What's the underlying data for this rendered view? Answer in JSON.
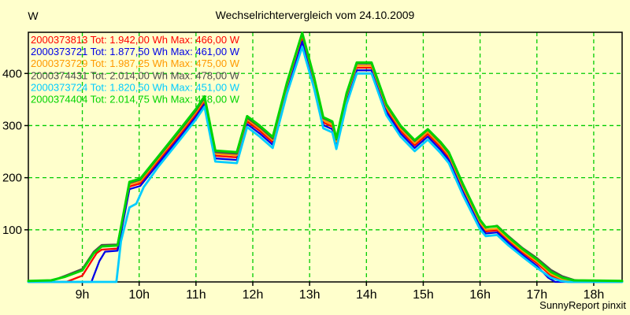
{
  "colors": {
    "background": "#ffffcc",
    "grid": "#00cc00",
    "axis": "#000000",
    "text": "#000000"
  },
  "chart_data": {
    "type": "line",
    "title": "Wechselrichtervergleich vom 24.10.2009",
    "ylabel": "W",
    "xlabel": "",
    "watermark": "SunnyReport pinxit",
    "grid": true,
    "legend_position": "top-left",
    "xlim_hours": [
      8.05,
      18.5
    ],
    "ylim": [
      0,
      479
    ],
    "y_ticks": [
      100,
      200,
      300,
      400
    ],
    "x_ticks": [
      {
        "hour": 9,
        "label": "9h"
      },
      {
        "hour": 10,
        "label": "10h"
      },
      {
        "hour": 11,
        "label": "11h"
      },
      {
        "hour": 12,
        "label": "12h"
      },
      {
        "hour": 13,
        "label": "13h"
      },
      {
        "hour": 14,
        "label": "14h"
      },
      {
        "hour": 15,
        "label": "15h"
      },
      {
        "hour": 16,
        "label": "16h"
      },
      {
        "hour": 17,
        "label": "17h"
      },
      {
        "hour": 18,
        "label": "18h"
      }
    ],
    "series": [
      {
        "serial": "2000373813",
        "color": "#ff0000",
        "stroke_width": 2.3,
        "total_wh": "1.942,00",
        "max_w": "466,00",
        "legend_label": "2000373813 Tot: 1.942,00 Wh Max: 466,00 W",
        "points": [
          [
            8.05,
            0
          ],
          [
            8.72,
            0
          ],
          [
            9.0,
            12
          ],
          [
            9.15,
            38
          ],
          [
            9.25,
            55
          ],
          [
            9.34,
            62
          ],
          [
            9.62,
            64
          ],
          [
            9.83,
            183
          ],
          [
            10.02,
            189
          ],
          [
            10.33,
            231
          ],
          [
            10.77,
            290
          ],
          [
            11.0,
            322
          ],
          [
            11.15,
            346
          ],
          [
            11.34,
            242
          ],
          [
            11.72,
            239
          ],
          [
            11.9,
            308
          ],
          [
            12.12,
            290
          ],
          [
            12.35,
            268
          ],
          [
            12.6,
            372
          ],
          [
            12.87,
            466
          ],
          [
            13.08,
            382
          ],
          [
            13.24,
            306
          ],
          [
            13.4,
            298
          ],
          [
            13.47,
            265
          ],
          [
            13.65,
            352
          ],
          [
            13.83,
            411
          ],
          [
            14.09,
            411
          ],
          [
            14.35,
            331
          ],
          [
            14.6,
            290
          ],
          [
            14.85,
            262
          ],
          [
            15.08,
            284
          ],
          [
            15.3,
            259
          ],
          [
            15.45,
            239
          ],
          [
            15.7,
            177
          ],
          [
            16.0,
            111
          ],
          [
            16.1,
            97
          ],
          [
            16.3,
            99
          ],
          [
            16.5,
            79
          ],
          [
            16.75,
            56
          ],
          [
            17.0,
            36
          ],
          [
            17.25,
            12
          ],
          [
            17.45,
            3
          ],
          [
            17.6,
            0
          ],
          [
            18.5,
            0
          ]
        ]
      },
      {
        "serial": "2000373721",
        "color": "#0000e6",
        "stroke_width": 2.3,
        "total_wh": "1.877,50",
        "max_w": "461,00",
        "legend_label": "2000373721 Tot: 1.877,50 Wh Max: 461,00 W",
        "points": [
          [
            8.05,
            0
          ],
          [
            9.16,
            0
          ],
          [
            9.3,
            40
          ],
          [
            9.4,
            58
          ],
          [
            9.62,
            60
          ],
          [
            9.83,
            178
          ],
          [
            10.02,
            184
          ],
          [
            10.33,
            226
          ],
          [
            10.77,
            285
          ],
          [
            11.0,
            317
          ],
          [
            11.15,
            341
          ],
          [
            11.34,
            237
          ],
          [
            11.72,
            234
          ],
          [
            11.9,
            303
          ],
          [
            12.12,
            285
          ],
          [
            12.35,
            263
          ],
          [
            12.6,
            367
          ],
          [
            12.87,
            461
          ],
          [
            13.08,
            377
          ],
          [
            13.24,
            301
          ],
          [
            13.4,
            293
          ],
          [
            13.47,
            260
          ],
          [
            13.65,
            347
          ],
          [
            13.83,
            406
          ],
          [
            14.09,
            406
          ],
          [
            14.35,
            326
          ],
          [
            14.6,
            285
          ],
          [
            14.85,
            257
          ],
          [
            15.08,
            279
          ],
          [
            15.3,
            254
          ],
          [
            15.45,
            234
          ],
          [
            15.7,
            172
          ],
          [
            16.0,
            107
          ],
          [
            16.1,
            93
          ],
          [
            16.3,
            95
          ],
          [
            16.5,
            75
          ],
          [
            16.75,
            52
          ],
          [
            17.0,
            31
          ],
          [
            17.2,
            8
          ],
          [
            17.32,
            0
          ],
          [
            18.5,
            0
          ]
        ]
      },
      {
        "serial": "2000373729",
        "color": "#ff9900",
        "stroke_width": 2.3,
        "total_wh": "1.987,25",
        "max_w": "475,00",
        "legend_label": "2000373729 Tot: 1.987,25 Wh Max: 475,00 W",
        "points": [
          [
            8.05,
            1
          ],
          [
            8.45,
            2
          ],
          [
            8.7,
            11
          ],
          [
            9.0,
            24
          ],
          [
            9.2,
            57
          ],
          [
            9.34,
            70
          ],
          [
            9.62,
            71
          ],
          [
            9.83,
            187
          ],
          [
            10.02,
            193
          ],
          [
            10.33,
            235
          ],
          [
            10.77,
            294
          ],
          [
            11.0,
            326
          ],
          [
            11.15,
            350
          ],
          [
            11.34,
            246
          ],
          [
            11.72,
            243
          ],
          [
            11.9,
            312
          ],
          [
            12.12,
            294
          ],
          [
            12.35,
            272
          ],
          [
            12.6,
            376
          ],
          [
            12.87,
            475
          ],
          [
            13.08,
            386
          ],
          [
            13.24,
            310
          ],
          [
            13.4,
            302
          ],
          [
            13.47,
            269
          ],
          [
            13.65,
            356
          ],
          [
            13.83,
            415
          ],
          [
            14.09,
            415
          ],
          [
            14.35,
            335
          ],
          [
            14.6,
            294
          ],
          [
            14.85,
            266
          ],
          [
            15.08,
            288
          ],
          [
            15.3,
            263
          ],
          [
            15.45,
            243
          ],
          [
            15.7,
            181
          ],
          [
            16.0,
            114
          ],
          [
            16.1,
            100
          ],
          [
            16.3,
            102
          ],
          [
            16.5,
            82
          ],
          [
            16.75,
            59
          ],
          [
            17.0,
            39
          ],
          [
            17.25,
            15
          ],
          [
            17.45,
            5
          ],
          [
            17.6,
            2
          ],
          [
            17.8,
            0
          ],
          [
            18.5,
            0
          ]
        ]
      },
      {
        "serial": "2000374431",
        "color": "#4d4d4d",
        "stroke_width": 2.3,
        "total_wh": "2.014,00",
        "max_w": "478,00",
        "legend_label": "2000374431 Tot: 2.014,00 Wh Max: 478,00 W",
        "points": [
          [
            8.05,
            1
          ],
          [
            8.45,
            2
          ],
          [
            8.7,
            12
          ],
          [
            9.0,
            25
          ],
          [
            9.2,
            58
          ],
          [
            9.34,
            71
          ],
          [
            9.62,
            72
          ],
          [
            9.83,
            190
          ],
          [
            10.02,
            196
          ],
          [
            10.33,
            238
          ],
          [
            10.77,
            297
          ],
          [
            11.0,
            329
          ],
          [
            11.15,
            353
          ],
          [
            11.34,
            249
          ],
          [
            11.72,
            246
          ],
          [
            11.9,
            315
          ],
          [
            12.12,
            297
          ],
          [
            12.35,
            275
          ],
          [
            12.6,
            379
          ],
          [
            12.87,
            478
          ],
          [
            13.08,
            390
          ],
          [
            13.24,
            314
          ],
          [
            13.4,
            306
          ],
          [
            13.47,
            273
          ],
          [
            13.65,
            359
          ],
          [
            13.83,
            419
          ],
          [
            14.09,
            419
          ],
          [
            14.35,
            339
          ],
          [
            14.6,
            298
          ],
          [
            14.85,
            270
          ],
          [
            15.08,
            292
          ],
          [
            15.3,
            267
          ],
          [
            15.45,
            247
          ],
          [
            15.7,
            185
          ],
          [
            16.0,
            118
          ],
          [
            16.1,
            104
          ],
          [
            16.3,
            108
          ],
          [
            16.5,
            88
          ],
          [
            16.75,
            65
          ],
          [
            17.0,
            46
          ],
          [
            17.25,
            23
          ],
          [
            17.45,
            11
          ],
          [
            17.65,
            4
          ],
          [
            17.85,
            1
          ],
          [
            18.5,
            1
          ]
        ]
      },
      {
        "serial": "2000373724",
        "color": "#00ccff",
        "stroke_width": 2.8,
        "total_wh": "1.820,50",
        "max_w": "451,00",
        "legend_label": "2000373724 Tot: 1.820,50 Wh Max: 451,00 W",
        "points": [
          [
            8.05,
            0
          ],
          [
            9.6,
            0
          ],
          [
            9.68,
            78
          ],
          [
            9.83,
            143
          ],
          [
            9.95,
            150
          ],
          [
            10.08,
            182
          ],
          [
            10.33,
            220
          ],
          [
            10.77,
            280
          ],
          [
            11.0,
            312
          ],
          [
            11.15,
            336
          ],
          [
            11.34,
            231
          ],
          [
            11.72,
            228
          ],
          [
            11.9,
            297
          ],
          [
            12.12,
            279
          ],
          [
            12.35,
            257
          ],
          [
            12.6,
            361
          ],
          [
            12.87,
            451
          ],
          [
            13.08,
            371
          ],
          [
            13.24,
            295
          ],
          [
            13.4,
            287
          ],
          [
            13.47,
            255
          ],
          [
            13.65,
            341
          ],
          [
            13.83,
            400
          ],
          [
            14.09,
            400
          ],
          [
            14.35,
            320
          ],
          [
            14.6,
            279
          ],
          [
            14.85,
            251
          ],
          [
            15.08,
            273
          ],
          [
            15.3,
            248
          ],
          [
            15.45,
            228
          ],
          [
            15.7,
            166
          ],
          [
            16.0,
            101
          ],
          [
            16.1,
            88
          ],
          [
            16.3,
            90
          ],
          [
            16.5,
            70
          ],
          [
            16.75,
            48
          ],
          [
            17.0,
            27
          ],
          [
            17.25,
            8
          ],
          [
            17.42,
            2
          ],
          [
            17.55,
            0
          ],
          [
            18.5,
            0
          ]
        ]
      },
      {
        "serial": "2000374404",
        "color": "#00d400",
        "stroke_width": 3,
        "total_wh": "2.014,75",
        "max_w": "478,00",
        "legend_label": "2000374404 Tot: 2.014,75 Wh Max: 478,00 W",
        "points": [
          [
            8.05,
            2
          ],
          [
            8.45,
            3
          ],
          [
            8.7,
            10
          ],
          [
            9.0,
            22
          ],
          [
            9.2,
            55
          ],
          [
            9.34,
            68
          ],
          [
            9.62,
            70
          ],
          [
            9.83,
            192
          ],
          [
            10.02,
            198
          ],
          [
            10.33,
            240
          ],
          [
            10.77,
            300
          ],
          [
            11.0,
            332
          ],
          [
            11.15,
            356
          ],
          [
            11.34,
            252
          ],
          [
            11.72,
            249
          ],
          [
            11.9,
            318
          ],
          [
            12.12,
            300
          ],
          [
            12.35,
            278
          ],
          [
            12.6,
            382
          ],
          [
            12.87,
            478
          ],
          [
            13.08,
            392
          ],
          [
            13.24,
            316
          ],
          [
            13.4,
            308
          ],
          [
            13.47,
            275
          ],
          [
            13.65,
            362
          ],
          [
            13.83,
            421
          ],
          [
            14.09,
            421
          ],
          [
            14.35,
            341
          ],
          [
            14.6,
            300
          ],
          [
            14.85,
            272
          ],
          [
            15.08,
            293
          ],
          [
            15.3,
            269
          ],
          [
            15.45,
            249
          ],
          [
            15.7,
            187
          ],
          [
            16.0,
            119
          ],
          [
            16.1,
            105
          ],
          [
            16.3,
            107
          ],
          [
            16.5,
            86
          ],
          [
            16.75,
            63
          ],
          [
            17.0,
            43
          ],
          [
            17.25,
            19
          ],
          [
            17.45,
            8
          ],
          [
            17.65,
            3
          ],
          [
            18.5,
            2
          ]
        ]
      }
    ]
  }
}
